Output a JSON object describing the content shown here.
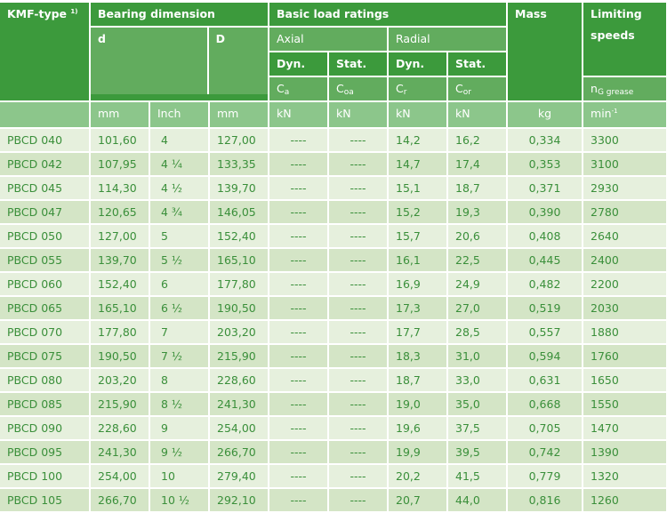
{
  "headers": {
    "type": "KMF-type",
    "type_note": "1)",
    "bearing_dimension": "Bearing dimension",
    "basic_load_ratings": "Basic load ratings",
    "mass": "Mass",
    "limiting_speeds_line1": "Limiting",
    "limiting_speeds_line2": "speeds",
    "axial": "Axial",
    "radial": "Radial",
    "d": "d",
    "D": "D",
    "axial_dyn": "Dyn.",
    "axial_stat": "Stat.",
    "radial_dyn": "Dyn.",
    "radial_stat": "Stat.",
    "ca": "C",
    "ca_sub": "a",
    "coa": "C",
    "coa_sub": "oa",
    "cr": "C",
    "cr_sub": "r",
    "cor": "C",
    "cor_sub": "or",
    "n": "n",
    "n_sub": "G grease"
  },
  "units": {
    "d_mm": "mm",
    "d_inch": "Inch",
    "D_mm": "mm",
    "ca": "kN",
    "coa": "kN",
    "cr": "kN",
    "cor": "kN",
    "mass": "kg",
    "speed": "min",
    "speed_sup": "-1"
  },
  "rows": [
    {
      "type": "PBCD  040",
      "d_mm": "101,60",
      "d_inch": "4",
      "D_mm": "127,00",
      "ca": "----",
      "coa": "----",
      "cr": "14,2",
      "cor": "16,2",
      "mass": "0,334",
      "speed": "3300"
    },
    {
      "type": "PBCD  042",
      "d_mm": "107,95",
      "d_inch": "4 ¼",
      "D_mm": "133,35",
      "ca": "----",
      "coa": "----",
      "cr": "14,7",
      "cor": "17,4",
      "mass": "0,353",
      "speed": "3100"
    },
    {
      "type": "PBCD  045",
      "d_mm": "114,30",
      "d_inch": "4 ½",
      "D_mm": "139,70",
      "ca": "----",
      "coa": "----",
      "cr": "15,1",
      "cor": "18,7",
      "mass": "0,371",
      "speed": "2930"
    },
    {
      "type": "PBCD  047",
      "d_mm": "120,65",
      "d_inch": "4 ¾",
      "D_mm": "146,05",
      "ca": "----",
      "coa": "----",
      "cr": "15,2",
      "cor": "19,3",
      "mass": "0,390",
      "speed": "2780"
    },
    {
      "type": "PBCD  050",
      "d_mm": "127,00",
      "d_inch": "5",
      "D_mm": "152,40",
      "ca": "----",
      "coa": "----",
      "cr": "15,7",
      "cor": "20,6",
      "mass": "0,408",
      "speed": "2640"
    },
    {
      "type": "PBCD  055",
      "d_mm": "139,70",
      "d_inch": "5 ½",
      "D_mm": "165,10",
      "ca": "----",
      "coa": "----",
      "cr": "16,1",
      "cor": "22,5",
      "mass": "0,445",
      "speed": "2400"
    },
    {
      "type": "PBCD  060",
      "d_mm": "152,40",
      "d_inch": "6",
      "D_mm": "177,80",
      "ca": "----",
      "coa": "----",
      "cr": "16,9",
      "cor": "24,9",
      "mass": "0,482",
      "speed": "2200"
    },
    {
      "type": "PBCD  065",
      "d_mm": "165,10",
      "d_inch": "6 ½",
      "D_mm": "190,50",
      "ca": "----",
      "coa": "----",
      "cr": "17,3",
      "cor": "27,0",
      "mass": "0,519",
      "speed": "2030"
    },
    {
      "type": "PBCD  070",
      "d_mm": "177,80",
      "d_inch": "7",
      "D_mm": "203,20",
      "ca": "----",
      "coa": "----",
      "cr": "17,7",
      "cor": "28,5",
      "mass": "0,557",
      "speed": "1880"
    },
    {
      "type": "PBCD  075",
      "d_mm": "190,50",
      "d_inch": "7 ½",
      "D_mm": "215,90",
      "ca": "----",
      "coa": "----",
      "cr": "18,3",
      "cor": "31,0",
      "mass": "0,594",
      "speed": "1760"
    },
    {
      "type": "PBCD  080",
      "d_mm": "203,20",
      "d_inch": "8",
      "D_mm": "228,60",
      "ca": "----",
      "coa": "----",
      "cr": "18,7",
      "cor": "33,0",
      "mass": "0,631",
      "speed": "1650"
    },
    {
      "type": "PBCD  085",
      "d_mm": "215,90",
      "d_inch": "8 ½",
      "D_mm": "241,30",
      "ca": "----",
      "coa": "----",
      "cr": "19,0",
      "cor": "35,0",
      "mass": "0,668",
      "speed": "1550"
    },
    {
      "type": "PBCD  090",
      "d_mm": "228,60",
      "d_inch": "9",
      "D_mm": "254,00",
      "ca": "----",
      "coa": "----",
      "cr": "19,6",
      "cor": "37,5",
      "mass": "0,705",
      "speed": "1470"
    },
    {
      "type": "PBCD  095",
      "d_mm": "241,30",
      "d_inch": "9 ½",
      "D_mm": "266,70",
      "ca": "----",
      "coa": "----",
      "cr": "19,9",
      "cor": "39,5",
      "mass": "0,742",
      "speed": "1390"
    },
    {
      "type": "PBCD  100",
      "d_mm": "254,00",
      "d_inch": "10",
      "D_mm": "279,40",
      "ca": "----",
      "coa": "----",
      "cr": "20,2",
      "cor": "41,5",
      "mass": "0,779",
      "speed": "1320"
    },
    {
      "type": "PBCD  105",
      "d_mm": "266,70",
      "d_inch": "10 ½",
      "D_mm": "292,10",
      "ca": "----",
      "coa": "----",
      "cr": "20,7",
      "cor": "44,0",
      "mass": "0,816",
      "speed": "1260"
    }
  ]
}
